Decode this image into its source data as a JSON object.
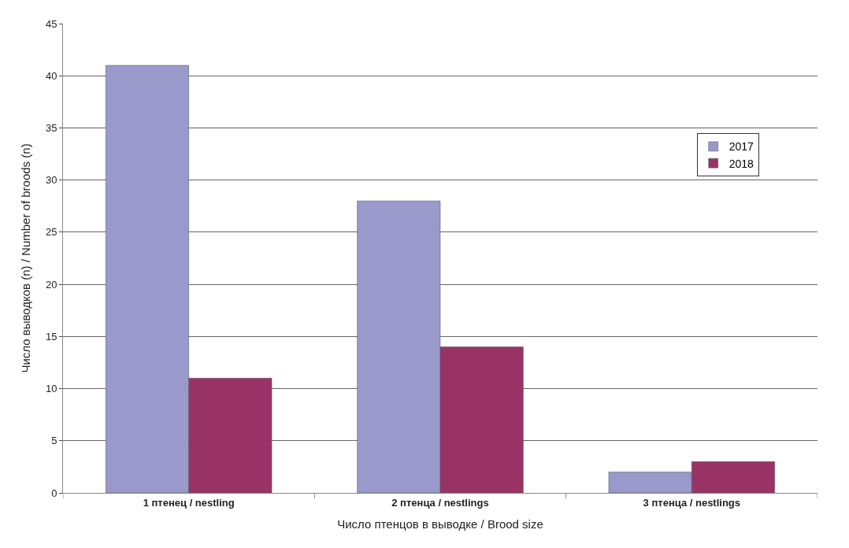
{
  "chart_data": {
    "type": "bar",
    "categories": [
      "1 птенец / nestling",
      "2 птенца / nestlings",
      "3 птенца / nestlings"
    ],
    "series": [
      {
        "name": "2017",
        "color": "#9999cc",
        "values": [
          41,
          28,
          2
        ]
      },
      {
        "name": "2018",
        "color": "#993366",
        "values": [
          11,
          14,
          3
        ]
      }
    ],
    "xlabel": "Число птенцов в выводке / Brood size",
    "ylabel": "Число выводков (n) / Number of broods (n)",
    "ylim": [
      0,
      45
    ],
    "yticks": [
      0,
      5,
      10,
      15,
      20,
      25,
      30,
      35,
      40,
      45
    ],
    "grid": "y",
    "legend": "right"
  }
}
